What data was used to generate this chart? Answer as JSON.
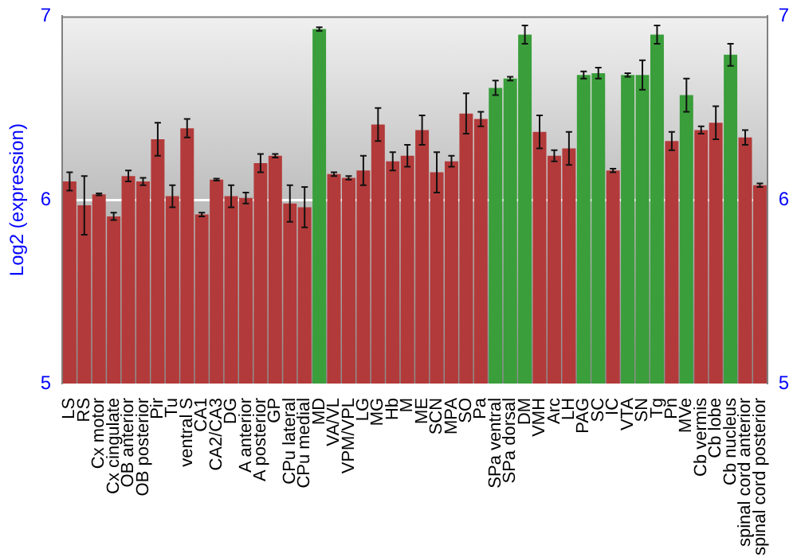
{
  "chart_data": {
    "type": "bar",
    "ylabel": "Log2 (expression)",
    "categories": [
      "LS",
      "RS",
      "Cx motor",
      "Cx cingulate",
      "OB anterior",
      "OB posterior",
      "Pir",
      "Tu",
      "ventral S",
      "CA1",
      "CA2/CA3",
      "DG",
      "A anterior",
      "A posterior",
      "GP",
      "CPu lateral",
      "CPu medial",
      "MD",
      "VA/VL",
      "VPM/VPL",
      "LG",
      "MG",
      "Hb",
      "M",
      "ME",
      "SCN",
      "MPA",
      "SO",
      "Pa",
      "SPa ventral",
      "SPa dorsal",
      "DM",
      "VMH",
      "Arc",
      "LH",
      "PAG",
      "SC",
      "IC",
      "VTA",
      "SN",
      "Tg",
      "Pn",
      "MVe",
      "Cb vermis",
      "Cb lobe",
      "Cb nucleus",
      "spinal cord anterior",
      "spinal cord posterior"
    ],
    "values": [
      6.1,
      5.97,
      6.03,
      5.91,
      6.13,
      6.1,
      6.33,
      6.02,
      6.39,
      5.92,
      6.11,
      6.02,
      6.01,
      6.2,
      6.24,
      5.98,
      5.96,
      6.93,
      6.14,
      6.12,
      6.16,
      6.41,
      6.21,
      6.24,
      6.38,
      6.15,
      6.21,
      6.47,
      6.44,
      6.61,
      6.66,
      6.9,
      6.37,
      6.24,
      6.28,
      6.68,
      6.69,
      6.16,
      6.68,
      6.68,
      6.9,
      6.32,
      6.57,
      6.38,
      6.42,
      6.79,
      6.34,
      6.08
    ],
    "errors": [
      0.05,
      0.16,
      0.005,
      0.02,
      0.03,
      0.02,
      0.09,
      0.06,
      0.05,
      0.01,
      0.005,
      0.06,
      0.03,
      0.05,
      0.01,
      0.1,
      0.11,
      0.01,
      0.01,
      0.01,
      0.08,
      0.09,
      0.05,
      0.06,
      0.08,
      0.11,
      0.03,
      0.11,
      0.04,
      0.04,
      0.01,
      0.05,
      0.09,
      0.03,
      0.09,
      0.02,
      0.03,
      0.01,
      0.01,
      0.08,
      0.05,
      0.05,
      0.09,
      0.02,
      0.09,
      0.06,
      0.04,
      0.01
    ],
    "colors": [
      "#b33a3a",
      "#b33a3a",
      "#b33a3a",
      "#b33a3a",
      "#b33a3a",
      "#b33a3a",
      "#b33a3a",
      "#b33a3a",
      "#b33a3a",
      "#b33a3a",
      "#b33a3a",
      "#b33a3a",
      "#b33a3a",
      "#b33a3a",
      "#b33a3a",
      "#b33a3a",
      "#b33a3a",
      "#3a9e3a",
      "#b33a3a",
      "#b33a3a",
      "#b33a3a",
      "#b33a3a",
      "#b33a3a",
      "#b33a3a",
      "#b33a3a",
      "#b33a3a",
      "#b33a3a",
      "#b33a3a",
      "#b33a3a",
      "#3a9e3a",
      "#3a9e3a",
      "#3a9e3a",
      "#b33a3a",
      "#b33a3a",
      "#b33a3a",
      "#3a9e3a",
      "#3a9e3a",
      "#b33a3a",
      "#3a9e3a",
      "#3a9e3a",
      "#3a9e3a",
      "#b33a3a",
      "#3a9e3a",
      "#b33a3a",
      "#b33a3a",
      "#3a9e3a",
      "#b33a3a",
      "#b33a3a"
    ],
    "ylim": [
      5,
      7
    ],
    "yticks": [
      5,
      6,
      7
    ],
    "y2lim": [
      5,
      7
    ],
    "y2ticks": [
      5,
      6,
      7
    ],
    "grid": "y"
  }
}
